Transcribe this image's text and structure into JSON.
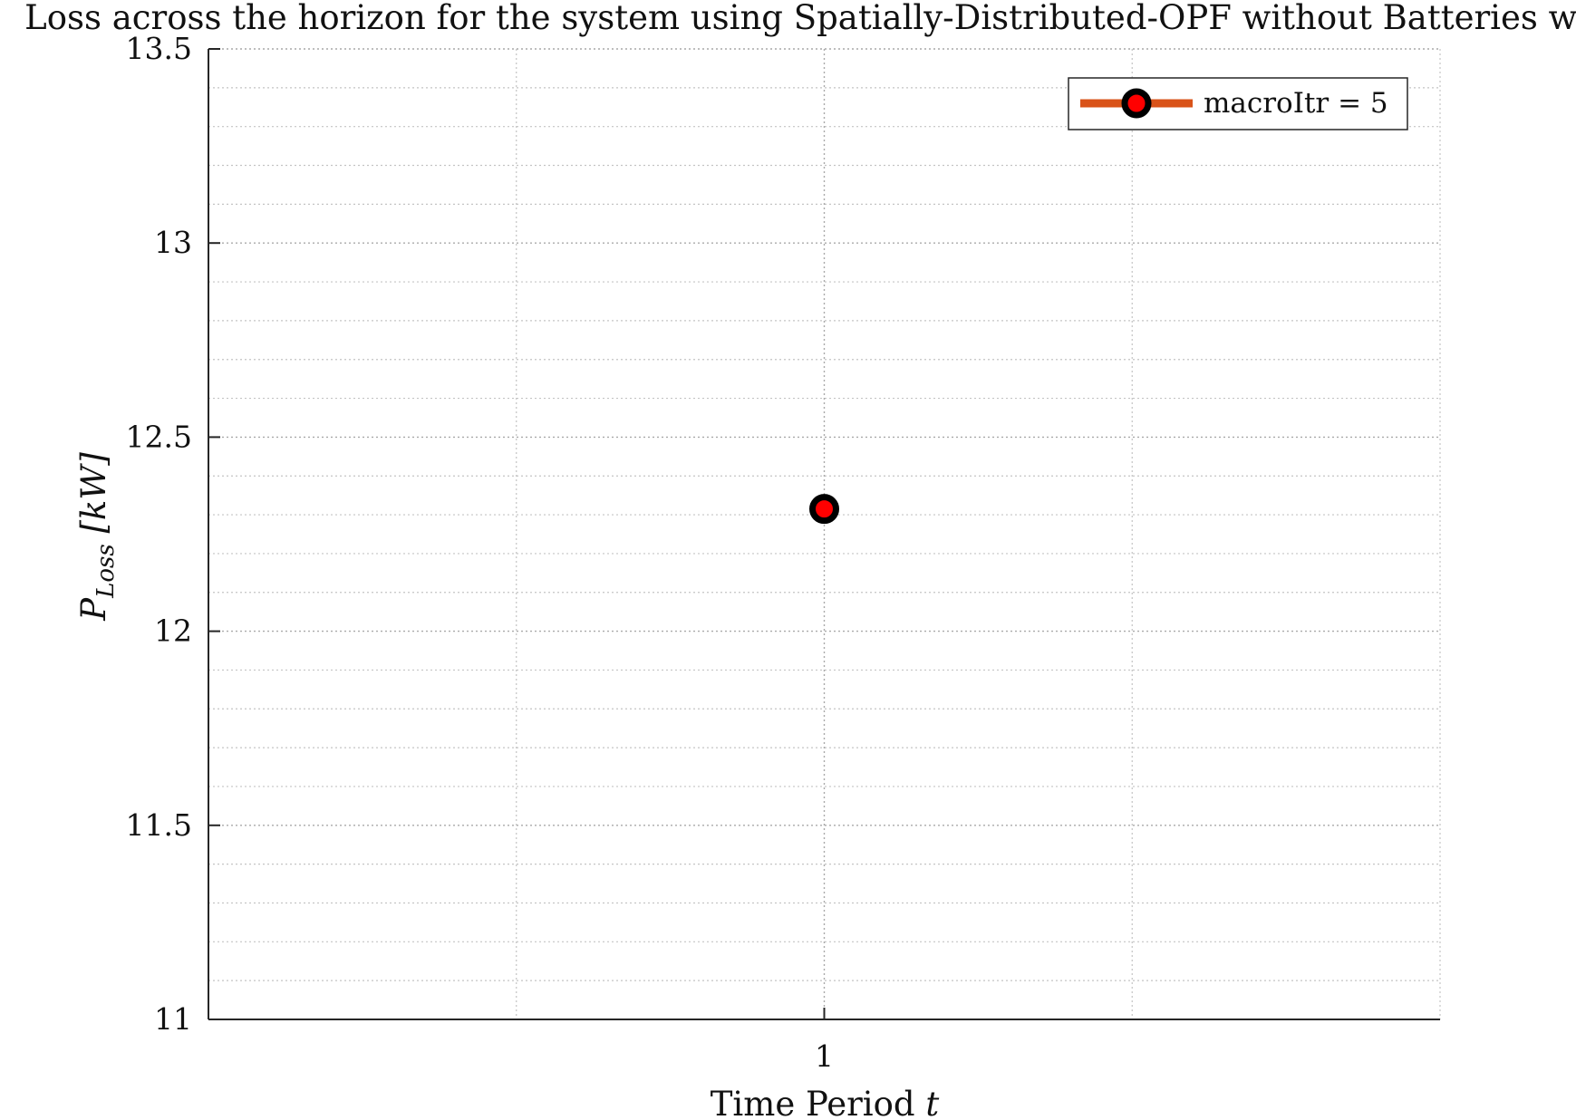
{
  "chart_data": {
    "type": "line",
    "title": "Loss across the horizon for the system using Spatially-Distributed-OPF without Batteries with",
    "xlabel": {
      "main": "Time Period",
      "var": "t"
    },
    "ylabel": {
      "main": "P",
      "sub": "Loss",
      "unit": "[kW]"
    },
    "x": [
      1
    ],
    "xlim": [
      0,
      2
    ],
    "xticks": [
      1
    ],
    "ylim": [
      11,
      13.5
    ],
    "yticks": [
      11,
      11.5,
      12,
      12.5,
      13,
      13.5
    ],
    "grid": true,
    "minor_grid": true,
    "series": [
      {
        "name": "macroItr = 5",
        "values": [
          12.315
        ],
        "line_color": "#d95319",
        "marker_edge_color": "#000000",
        "marker_face_color": "#ff0000"
      }
    ],
    "legend": {
      "position": "top-right",
      "entries": [
        "macroItr = 5"
      ]
    }
  }
}
